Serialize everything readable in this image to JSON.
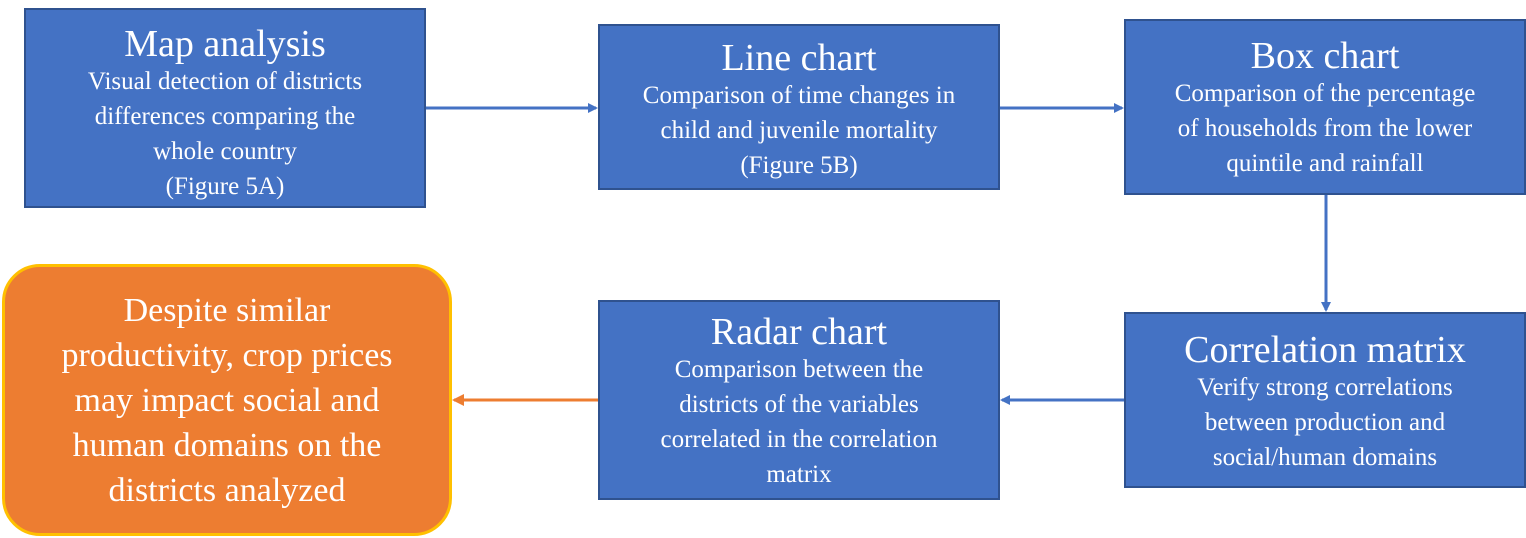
{
  "nodes": {
    "map_analysis": {
      "title": "Map analysis",
      "lines": [
        "Visual detection of districts",
        "differences comparing the",
        "whole country",
        "(Figure 5A)"
      ]
    },
    "line_chart": {
      "title": "Line chart",
      "lines": [
        "Comparison of time changes in",
        "child and juvenile mortality",
        "(Figure 5B)"
      ]
    },
    "box_chart": {
      "title": "Box chart",
      "lines": [
        "Comparison of the percentage",
        "of households from the lower",
        "quintile and rainfall"
      ]
    },
    "correlation_matrix": {
      "title": "Correlation matrix",
      "lines": [
        "Verify strong correlations",
        "between production and",
        "social/human domains"
      ]
    },
    "radar_chart": {
      "title": "Radar chart",
      "lines": [
        "Comparison between the",
        "districts of the variables",
        "correlated in the correlation",
        "matrix"
      ]
    },
    "conclusion": {
      "lines": [
        "Despite similar",
        "productivity, crop prices",
        "may impact social and",
        "human domains on the",
        "districts analyzed"
      ]
    }
  },
  "colors": {
    "box_fill": "#4472c4",
    "box_border": "#2f528f",
    "conclusion_fill": "#ed7d31",
    "conclusion_border": "#ffc000",
    "arrow_blue": "#4472c4",
    "arrow_orange": "#ed7d31"
  }
}
